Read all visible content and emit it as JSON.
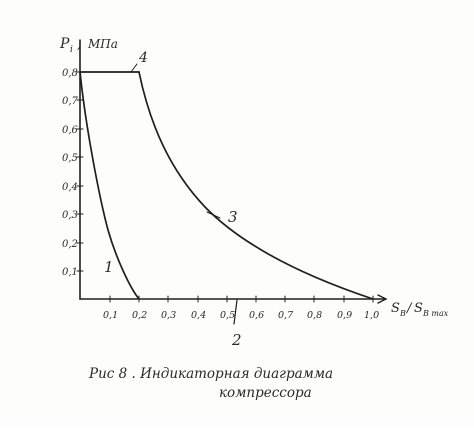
{
  "y_axis_label": "P",
  "y_axis_subscript": "i",
  "y_axis_unit": "МПа",
  "x_axis_label": "S",
  "x_axis_subscript": "B",
  "x_axis_denominator": "S",
  "x_axis_denominator_subscript": "B max",
  "y_ticks": [
    "0,1",
    "0,2",
    "0,3",
    "0,4",
    "0,5",
    "0,6",
    "0,7",
    "0,8"
  ],
  "x_ticks": [
    "0,1",
    "0,2",
    "0,3",
    "0,4",
    "0,5",
    "0,6",
    "0,7",
    "0,8",
    "0,9",
    "1,0"
  ],
  "curve_labels": {
    "line_1": "1",
    "line_2": "2",
    "line_3": "3",
    "line_4": "4"
  },
  "caption": {
    "line1": "Рис 8 .  Индикаторная диаграмма",
    "line2": "компрессора"
  }
}
